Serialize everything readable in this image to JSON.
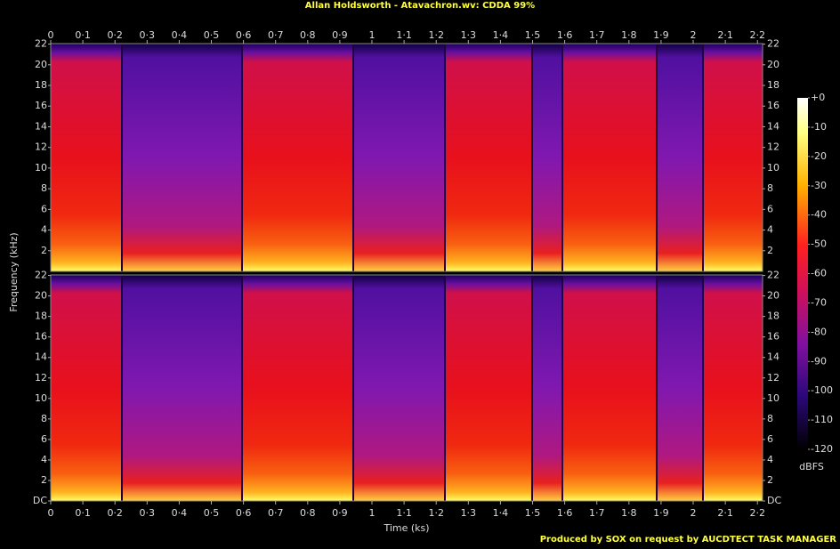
{
  "chart_data": {
    "type": "spectrogram",
    "title": "Allan Holdsworth - Atavachron.wv: CDDA 99%",
    "xlabel": "Time (ks)",
    "ylabel": "Frequency (kHz)",
    "footer": "Produced by SOX on request by AUCDTECT TASK MANAGER",
    "xlim": [
      0,
      2.216
    ],
    "xticks": [
      0,
      {
        "value": 0.1,
        "label": "0·1"
      },
      {
        "value": 0.2,
        "label": "0·2"
      },
      {
        "value": 0.3,
        "label": "0·3"
      },
      {
        "value": 0.4,
        "label": "0·4"
      },
      {
        "value": 0.5,
        "label": "0·5"
      },
      {
        "value": 0.6,
        "label": "0·6"
      },
      {
        "value": 0.7,
        "label": "0·7"
      },
      {
        "value": 0.8,
        "label": "0·8"
      },
      {
        "value": 0.9,
        "label": "0·9"
      },
      1,
      {
        "value": 1.1,
        "label": "1·1"
      },
      {
        "value": 1.2,
        "label": "1·2"
      },
      {
        "value": 1.3,
        "label": "1·3"
      },
      {
        "value": 1.4,
        "label": "1·4"
      },
      {
        "value": 1.5,
        "label": "1·5"
      },
      {
        "value": 1.6,
        "label": "1·6"
      },
      {
        "value": 1.7,
        "label": "1·7"
      },
      {
        "value": 1.8,
        "label": "1·8"
      },
      {
        "value": 1.9,
        "label": "1·9"
      },
      2,
      {
        "value": 2.1,
        "label": "2·1"
      },
      {
        "value": 2.2,
        "label": "2·2"
      }
    ],
    "ylim": [
      0,
      22.05
    ],
    "yticks": [
      {
        "value": 0,
        "label": "DC"
      },
      2,
      4,
      6,
      8,
      10,
      12,
      14,
      16,
      18,
      20,
      22
    ],
    "colorbar": {
      "label": "dBFS",
      "lim": [
        -120,
        0
      ],
      "ticks": [
        {
          "value": 0,
          "label": "+0"
        },
        -10,
        -20,
        -30,
        -40,
        -50,
        -60,
        -70,
        -80,
        -90,
        -100,
        -110,
        -120
      ]
    }
  }
}
